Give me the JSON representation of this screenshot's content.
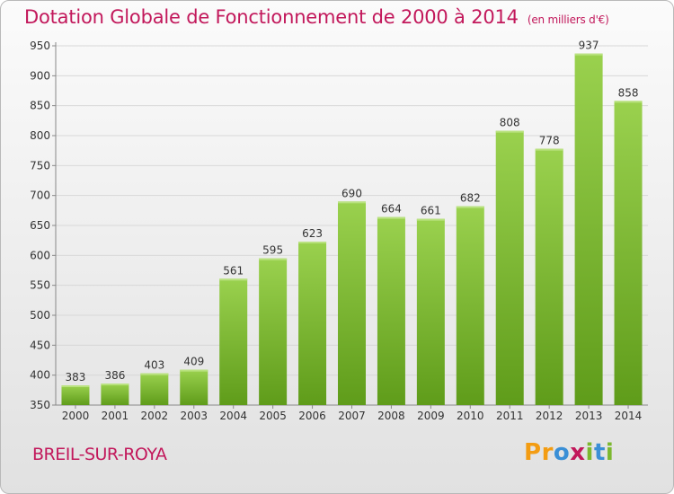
{
  "chart_data": {
    "type": "bar",
    "title": "Dotation Globale de Fonctionnement de 2000 à 2014",
    "subtitle": "(en milliers d'€)",
    "categories": [
      "2000",
      "2001",
      "2002",
      "2003",
      "2004",
      "2005",
      "2006",
      "2007",
      "2008",
      "2009",
      "2010",
      "2011",
      "2012",
      "2013",
      "2014"
    ],
    "values": [
      383,
      386,
      403,
      409,
      561,
      595,
      623,
      690,
      664,
      661,
      682,
      808,
      778,
      937,
      858
    ],
    "ylim": [
      350,
      950
    ],
    "yticks": [
      350,
      400,
      450,
      500,
      550,
      600,
      650,
      700,
      750,
      800,
      850,
      900,
      950
    ],
    "grid": true,
    "bar_color": "#7cb82f"
  },
  "footer": {
    "city": "BREIL-SUR-ROYA"
  },
  "logo": {
    "letters": [
      {
        "ch": "P",
        "color": "#f39c12"
      },
      {
        "ch": "r",
        "color": "#f39c12"
      },
      {
        "ch": "o",
        "color": "#3a8fd6"
      },
      {
        "ch": "x",
        "color": "#c2185b"
      },
      {
        "ch": "i",
        "color": "#7cb82f"
      },
      {
        "ch": "t",
        "color": "#3a8fd6"
      },
      {
        "ch": "i",
        "color": "#7cb82f"
      }
    ]
  }
}
